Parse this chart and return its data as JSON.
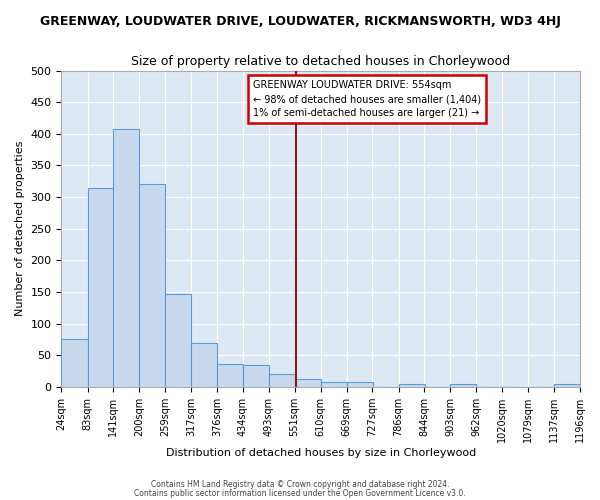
{
  "title": "GREENWAY, LOUDWATER DRIVE, LOUDWATER, RICKMANSWORTH, WD3 4HJ",
  "subtitle": "Size of property relative to detached houses in Chorleywood",
  "xlabel": "Distribution of detached houses by size in Chorleywood",
  "ylabel": "Number of detached properties",
  "bar_color": "#c8d9ed",
  "bar_edge_color": "#5b9bd5",
  "bg_color": "#dce9f5",
  "grid_color": "#ffffff",
  "vline_value": 554,
  "vline_color": "#8b1a1a",
  "annotation_title": "GREENWAY LOUDWATER DRIVE: 554sqm",
  "annotation_line1": "← 98% of detached houses are smaller (1,404)",
  "annotation_line2": "1% of semi-detached houses are larger (21) →",
  "annotation_box_color": "#ffffff",
  "annotation_border_color": "#cc0000",
  "bin_edges": [
    24,
    83,
    141,
    200,
    259,
    317,
    376,
    434,
    493,
    551,
    610,
    669,
    727,
    786,
    844,
    903,
    962,
    1020,
    1079,
    1137,
    1196
  ],
  "bar_heights": [
    75,
    315,
    407,
    320,
    147,
    70,
    36,
    35,
    20,
    12,
    7,
    7,
    0,
    5,
    0,
    5,
    0,
    0,
    0,
    5
  ],
  "ylim": [
    0,
    500
  ],
  "yticks": [
    0,
    50,
    100,
    150,
    200,
    250,
    300,
    350,
    400,
    450,
    500
  ],
  "footer1": "Contains HM Land Registry data © Crown copyright and database right 2024.",
  "footer2": "Contains public sector information licensed under the Open Government Licence v3.0."
}
